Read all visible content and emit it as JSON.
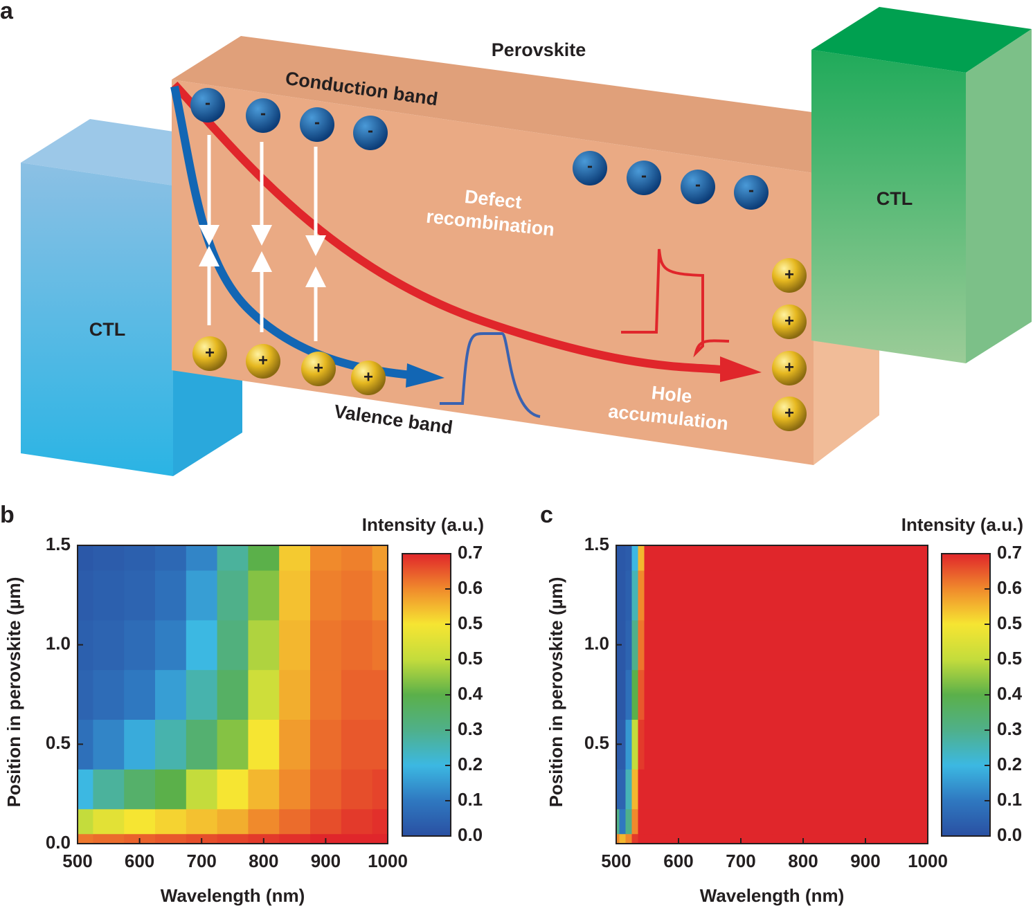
{
  "diagram": {
    "panel_label": "a",
    "top_label": "Perovskite",
    "conduction": "Conduction band",
    "valence": "Valence band",
    "defect": [
      "Defect",
      "recombination"
    ],
    "hole": [
      "Hole",
      "accumulation"
    ],
    "left_ctl": "CTL",
    "right_ctl": "CTL",
    "electron_sign": "-",
    "hole_sign": "+"
  },
  "chart_data": [
    {
      "type": "contour",
      "panel_label": "b",
      "colorbar_title": "Intensity (a.u.)",
      "x_label": "Wavelength (nm)",
      "y_label": "Position in perovskite (µm)",
      "x": [
        500,
        550,
        600,
        650,
        700,
        750,
        800,
        850,
        900,
        950,
        1000
      ],
      "y": [
        0,
        0.1,
        0.25,
        0.5,
        0.75,
        1.0,
        1.25,
        1.5
      ],
      "z": [
        [
          0.62,
          0.63,
          0.64,
          0.65,
          0.66,
          0.67,
          0.68,
          0.69,
          0.7,
          0.7,
          0.7
        ],
        [
          0.45,
          0.48,
          0.5,
          0.52,
          0.54,
          0.56,
          0.6,
          0.63,
          0.66,
          0.68,
          0.69
        ],
        [
          0.2,
          0.28,
          0.35,
          0.4,
          0.45,
          0.5,
          0.55,
          0.6,
          0.64,
          0.66,
          0.67
        ],
        [
          0.08,
          0.12,
          0.18,
          0.26,
          0.34,
          0.42,
          0.5,
          0.58,
          0.63,
          0.65,
          0.65
        ],
        [
          0.05,
          0.07,
          0.1,
          0.16,
          0.26,
          0.36,
          0.46,
          0.56,
          0.62,
          0.64,
          0.64
        ],
        [
          0.04,
          0.05,
          0.07,
          0.11,
          0.2,
          0.32,
          0.44,
          0.55,
          0.62,
          0.63,
          0.62
        ],
        [
          0.03,
          0.04,
          0.05,
          0.08,
          0.16,
          0.3,
          0.42,
          0.54,
          0.61,
          0.62,
          0.6
        ],
        [
          0.02,
          0.03,
          0.04,
          0.06,
          0.12,
          0.28,
          0.4,
          0.53,
          0.6,
          0.61,
          0.58
        ]
      ],
      "xlim": [
        500,
        1000
      ],
      "ylim": [
        0,
        1.5
      ],
      "xticks": [
        500,
        600,
        700,
        800,
        900,
        1000
      ],
      "yticks": [
        {
          "value": 0,
          "label": "0.0"
        },
        0.5,
        {
          "value": 1,
          "label": "1.0"
        },
        1.5
      ],
      "colorbar_ticks": [
        {
          "value": 0,
          "label": "0.0"
        },
        0.1,
        0.2,
        0.3,
        0.4,
        {
          "value": 0.45,
          "label": "0.5"
        },
        0.5,
        0.6,
        0.7
      ],
      "colormap": [
        "#2a50a2",
        "#2f78c0",
        "#3cb8e2",
        "#4fb08a",
        "#5bb04a",
        "#c4dc3c",
        "#f6e532",
        "#f08a2c",
        "#e0262b"
      ]
    },
    {
      "type": "contour",
      "panel_label": "c",
      "colorbar_title": "Intensity (a.u.)",
      "x_label": "Wavelength (nm)",
      "y_label": "Position in perovskite (µm)",
      "x": [
        500,
        510,
        520,
        530,
        540,
        550,
        560,
        600,
        700,
        800,
        900,
        1000
      ],
      "y": [
        0,
        0.1,
        0.25,
        0.5,
        0.75,
        1.0,
        1.25,
        1.5
      ],
      "z": [
        [
          0.6,
          0.55,
          0.6,
          0.68,
          0.7,
          0.7,
          0.7,
          0.7,
          0.7,
          0.7,
          0.7,
          0.7
        ],
        [
          0.3,
          0.1,
          0.3,
          0.6,
          0.7,
          0.7,
          0.7,
          0.7,
          0.7,
          0.7,
          0.7,
          0.7
        ],
        [
          0.05,
          0.05,
          0.25,
          0.55,
          0.7,
          0.7,
          0.7,
          0.7,
          0.7,
          0.7,
          0.7,
          0.7
        ],
        [
          0.03,
          0.03,
          0.15,
          0.45,
          0.68,
          0.7,
          0.7,
          0.7,
          0.7,
          0.7,
          0.7,
          0.7
        ],
        [
          0.02,
          0.02,
          0.08,
          0.4,
          0.65,
          0.7,
          0.7,
          0.7,
          0.7,
          0.7,
          0.7,
          0.7
        ],
        [
          0.02,
          0.02,
          0.05,
          0.3,
          0.62,
          0.7,
          0.7,
          0.7,
          0.7,
          0.7,
          0.7,
          0.7
        ],
        [
          0.02,
          0.02,
          0.04,
          0.25,
          0.6,
          0.7,
          0.7,
          0.7,
          0.7,
          0.7,
          0.7,
          0.7
        ],
        [
          0.02,
          0.02,
          0.03,
          0.2,
          0.55,
          0.7,
          0.7,
          0.7,
          0.7,
          0.7,
          0.7,
          0.7
        ]
      ],
      "xlim": [
        500,
        1000
      ],
      "ylim": [
        0,
        1.5
      ],
      "xticks": [
        500,
        600,
        700,
        800,
        900,
        1000
      ],
      "yticks": [
        0.5,
        {
          "value": 1,
          "label": "1.0"
        },
        1.5
      ],
      "colorbar_ticks": [
        {
          "value": 0,
          "label": "0.0"
        },
        0.1,
        0.2,
        0.3,
        0.4,
        {
          "value": 0.45,
          "label": "0.5"
        },
        0.5,
        0.6,
        0.7
      ],
      "colormap": [
        "#2a50a2",
        "#2f78c0",
        "#3cb8e2",
        "#4fb08a",
        "#5bb04a",
        "#c4dc3c",
        "#f6e532",
        "#f08a2c",
        "#e0262b"
      ]
    }
  ]
}
